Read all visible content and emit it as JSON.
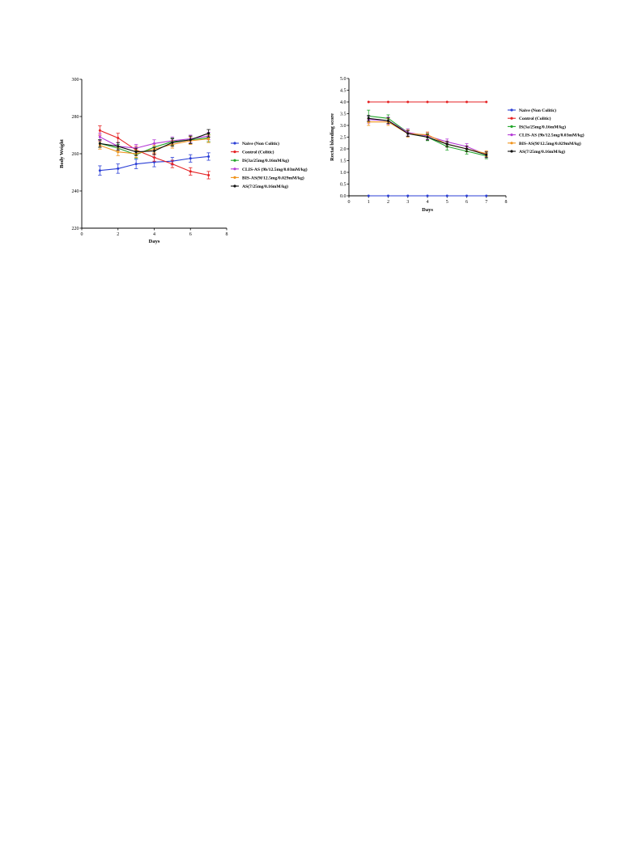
{
  "chart_data": [
    {
      "type": "line",
      "title": "",
      "xlabel": "Days",
      "ylabel": "Body Weight",
      "xlim": [
        0,
        8
      ],
      "ylim": [
        220,
        300
      ],
      "xticks": [
        0,
        2,
        4,
        6,
        8
      ],
      "yticks": [
        220,
        240,
        260,
        280,
        300
      ],
      "grid": false,
      "legend_position": "right",
      "x": [
        1,
        2,
        3,
        4,
        5,
        6,
        7
      ],
      "series": [
        {
          "name": "Naive (Non Colitic)",
          "color": "#2b3fd6",
          "values": [
            251,
            252,
            254.5,
            255.5,
            256,
            257.5,
            258.5
          ],
          "errors": [
            2.5,
            2.5,
            2.5,
            2.5,
            2,
            2,
            2
          ]
        },
        {
          "name": "Control (Colitic)",
          "color": "#e52224",
          "values": [
            272.5,
            268.5,
            262,
            258,
            254.5,
            250.5,
            248.5
          ],
          "errors": [
            2.5,
            2.5,
            2,
            2,
            2,
            2,
            2
          ]
        },
        {
          "name": "IS(3a/25mg/0.16mM/kg)",
          "color": "#22a52b",
          "values": [
            265.5,
            263,
            259.5,
            263.5,
            266.5,
            267.5,
            268.5
          ],
          "errors": [
            2,
            2,
            2,
            2,
            2,
            2,
            2
          ]
        },
        {
          "name": "CLIS-AS (9b/12.5mg/0.03mM/kg)",
          "color": "#b43bd6",
          "values": [
            269,
            264,
            263,
            265.5,
            267,
            268,
            269.5
          ],
          "errors": [
            2,
            2,
            2,
            2,
            2,
            2,
            2
          ]
        },
        {
          "name": "BIS-AS(9f/12.5mg/0.029mM/kg)",
          "color": "#f0941e",
          "values": [
            264.5,
            261,
            260,
            262.5,
            265,
            267,
            268
          ],
          "errors": [
            2,
            2,
            2,
            2,
            2,
            2,
            2
          ]
        },
        {
          "name": "AS(7/25mg/0.16mM/kg)",
          "color": "#111111",
          "values": [
            265.5,
            264,
            261,
            261.5,
            266,
            267.5,
            271
          ],
          "errors": [
            2,
            2,
            2,
            2,
            2,
            2,
            2
          ]
        }
      ]
    },
    {
      "type": "line",
      "title": "",
      "xlabel": "Days",
      "ylabel": "Rectal bleeding score",
      "xlim": [
        0,
        8
      ],
      "ylim": [
        0,
        5
      ],
      "xticks": [
        0,
        1,
        2,
        3,
        4,
        5,
        6,
        7,
        8
      ],
      "yticks": [
        "0.0",
        "0.5",
        "1.0",
        "1.5",
        "2.0",
        "2.5",
        "3.0",
        "3.5",
        "4.0",
        "4.5",
        "5.0"
      ],
      "grid": false,
      "legend_position": "right",
      "x": [
        1,
        2,
        3,
        4,
        5,
        6,
        7
      ],
      "series": [
        {
          "name": "Naive (Non Colitic)",
          "color": "#2b3fd6",
          "values": [
            0,
            0,
            0,
            0,
            0,
            0,
            0
          ],
          "errors": [
            0,
            0,
            0,
            0,
            0,
            0,
            0
          ]
        },
        {
          "name": "Control (Colitic)",
          "color": "#e52224",
          "values": [
            4,
            4,
            4,
            4,
            4,
            4,
            4
          ],
          "errors": [
            0,
            0,
            0,
            0,
            0,
            0,
            0
          ]
        },
        {
          "name": "IS(3a/25mg/0.16mM/kg)",
          "color": "#22a52b",
          "values": [
            3.4,
            3.3,
            2.7,
            2.5,
            2.1,
            1.9,
            1.7
          ],
          "errors": [
            0.25,
            0.15,
            0.15,
            0.15,
            0.15,
            0.12,
            0.12
          ]
        },
        {
          "name": "CLIS-AS (9b/12.5mg/0.03mM/kg)",
          "color": "#b43bd6",
          "values": [
            3.25,
            3.2,
            2.7,
            2.55,
            2.3,
            2.1,
            1.75
          ],
          "errors": [
            0.15,
            0.15,
            0.15,
            0.15,
            0.12,
            0.12,
            0.12
          ]
        },
        {
          "name": "BIS-AS(9f/12.5mg/0.029mM/kg)",
          "color": "#f0941e",
          "values": [
            3.15,
            3.15,
            2.65,
            2.6,
            2.2,
            2.0,
            1.8
          ],
          "errors": [
            0.15,
            0.15,
            0.15,
            0.12,
            0.12,
            0.12,
            0.12
          ]
        },
        {
          "name": "AS(7/25mg/0.16mM/kg)",
          "color": "#111111",
          "values": [
            3.3,
            3.2,
            2.65,
            2.5,
            2.2,
            2.0,
            1.75
          ],
          "errors": [
            0.12,
            0.12,
            0.12,
            0.12,
            0.12,
            0.12,
            0.12
          ]
        }
      ]
    }
  ]
}
